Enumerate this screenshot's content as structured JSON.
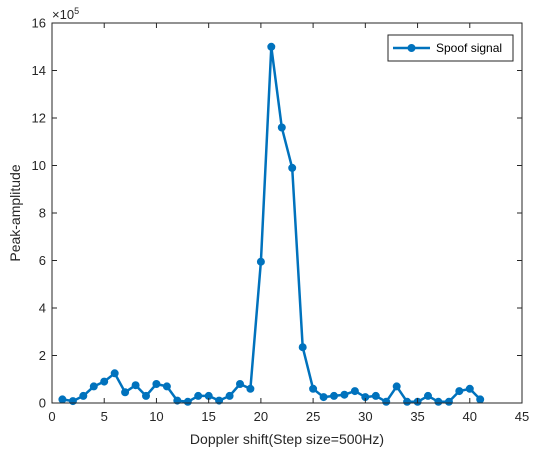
{
  "chart_data": {
    "type": "line",
    "xlabel": "Doppler shift(Step size=500Hz)",
    "ylabel": "Peak-amplitude",
    "xlim": [
      0,
      45
    ],
    "ylim": [
      0,
      16
    ],
    "y_scale_exponent_label": "×10",
    "y_scale_exponent": "5",
    "x_ticks": [
      0,
      5,
      10,
      15,
      20,
      25,
      30,
      35,
      40,
      45
    ],
    "y_ticks": [
      0,
      2,
      4,
      6,
      8,
      10,
      12,
      14,
      16
    ],
    "grid": false,
    "legend_position": "top-right",
    "series": [
      {
        "name": "Spoof signal",
        "color": "#0072BD",
        "marker": "circle",
        "x": [
          1,
          2,
          3,
          4,
          5,
          6,
          7,
          8,
          9,
          10,
          11,
          12,
          13,
          14,
          15,
          16,
          17,
          18,
          19,
          20,
          21,
          22,
          23,
          24,
          25,
          26,
          27,
          28,
          29,
          30,
          31,
          32,
          33,
          34,
          35,
          36,
          37,
          38,
          39,
          40,
          41
        ],
        "y": [
          0.15,
          0.08,
          0.3,
          0.7,
          0.9,
          1.25,
          0.45,
          0.75,
          0.3,
          0.8,
          0.7,
          0.1,
          0.05,
          0.3,
          0.3,
          0.1,
          0.3,
          0.8,
          0.6,
          5.95,
          15.0,
          11.6,
          9.9,
          2.35,
          0.6,
          0.25,
          0.3,
          0.35,
          0.5,
          0.25,
          0.3,
          0.05,
          0.7,
          0.05,
          0.05,
          0.3,
          0.05,
          0.05,
          0.5,
          0.6,
          0.15
        ]
      }
    ]
  }
}
